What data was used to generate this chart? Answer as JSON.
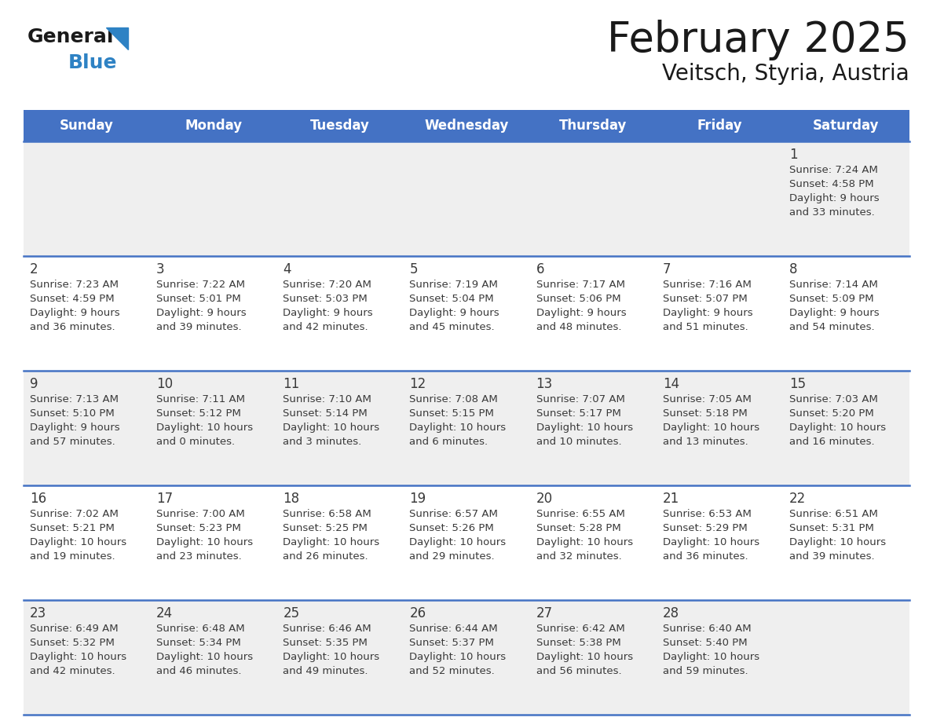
{
  "title": "February 2025",
  "subtitle": "Veitsch, Styria, Austria",
  "header_color": "#4472C4",
  "header_text_color": "#FFFFFF",
  "cell_bg_odd": "#EFEFEF",
  "cell_bg_even": "#FFFFFF",
  "divider_color": "#4472C4",
  "text_color": "#3a3a3a",
  "days_of_week": [
    "Sunday",
    "Monday",
    "Tuesday",
    "Wednesday",
    "Thursday",
    "Friday",
    "Saturday"
  ],
  "weeks": [
    [
      0,
      0,
      0,
      0,
      0,
      0,
      1
    ],
    [
      2,
      3,
      4,
      5,
      6,
      7,
      8
    ],
    [
      9,
      10,
      11,
      12,
      13,
      14,
      15
    ],
    [
      16,
      17,
      18,
      19,
      20,
      21,
      22
    ],
    [
      23,
      24,
      25,
      26,
      27,
      28,
      0
    ]
  ],
  "day_data": {
    "1": {
      "sunrise": "7:24 AM",
      "sunset": "4:58 PM",
      "daylight_line1": "Daylight: 9 hours",
      "daylight_line2": "and 33 minutes."
    },
    "2": {
      "sunrise": "7:23 AM",
      "sunset": "4:59 PM",
      "daylight_line1": "Daylight: 9 hours",
      "daylight_line2": "and 36 minutes."
    },
    "3": {
      "sunrise": "7:22 AM",
      "sunset": "5:01 PM",
      "daylight_line1": "Daylight: 9 hours",
      "daylight_line2": "and 39 minutes."
    },
    "4": {
      "sunrise": "7:20 AM",
      "sunset": "5:03 PM",
      "daylight_line1": "Daylight: 9 hours",
      "daylight_line2": "and 42 minutes."
    },
    "5": {
      "sunrise": "7:19 AM",
      "sunset": "5:04 PM",
      "daylight_line1": "Daylight: 9 hours",
      "daylight_line2": "and 45 minutes."
    },
    "6": {
      "sunrise": "7:17 AM",
      "sunset": "5:06 PM",
      "daylight_line1": "Daylight: 9 hours",
      "daylight_line2": "and 48 minutes."
    },
    "7": {
      "sunrise": "7:16 AM",
      "sunset": "5:07 PM",
      "daylight_line1": "Daylight: 9 hours",
      "daylight_line2": "and 51 minutes."
    },
    "8": {
      "sunrise": "7:14 AM",
      "sunset": "5:09 PM",
      "daylight_line1": "Daylight: 9 hours",
      "daylight_line2": "and 54 minutes."
    },
    "9": {
      "sunrise": "7:13 AM",
      "sunset": "5:10 PM",
      "daylight_line1": "Daylight: 9 hours",
      "daylight_line2": "and 57 minutes."
    },
    "10": {
      "sunrise": "7:11 AM",
      "sunset": "5:12 PM",
      "daylight_line1": "Daylight: 10 hours",
      "daylight_line2": "and 0 minutes."
    },
    "11": {
      "sunrise": "7:10 AM",
      "sunset": "5:14 PM",
      "daylight_line1": "Daylight: 10 hours",
      "daylight_line2": "and 3 minutes."
    },
    "12": {
      "sunrise": "7:08 AM",
      "sunset": "5:15 PM",
      "daylight_line1": "Daylight: 10 hours",
      "daylight_line2": "and 6 minutes."
    },
    "13": {
      "sunrise": "7:07 AM",
      "sunset": "5:17 PM",
      "daylight_line1": "Daylight: 10 hours",
      "daylight_line2": "and 10 minutes."
    },
    "14": {
      "sunrise": "7:05 AM",
      "sunset": "5:18 PM",
      "daylight_line1": "Daylight: 10 hours",
      "daylight_line2": "and 13 minutes."
    },
    "15": {
      "sunrise": "7:03 AM",
      "sunset": "5:20 PM",
      "daylight_line1": "Daylight: 10 hours",
      "daylight_line2": "and 16 minutes."
    },
    "16": {
      "sunrise": "7:02 AM",
      "sunset": "5:21 PM",
      "daylight_line1": "Daylight: 10 hours",
      "daylight_line2": "and 19 minutes."
    },
    "17": {
      "sunrise": "7:00 AM",
      "sunset": "5:23 PM",
      "daylight_line1": "Daylight: 10 hours",
      "daylight_line2": "and 23 minutes."
    },
    "18": {
      "sunrise": "6:58 AM",
      "sunset": "5:25 PM",
      "daylight_line1": "Daylight: 10 hours",
      "daylight_line2": "and 26 minutes."
    },
    "19": {
      "sunrise": "6:57 AM",
      "sunset": "5:26 PM",
      "daylight_line1": "Daylight: 10 hours",
      "daylight_line2": "and 29 minutes."
    },
    "20": {
      "sunrise": "6:55 AM",
      "sunset": "5:28 PM",
      "daylight_line1": "Daylight: 10 hours",
      "daylight_line2": "and 32 minutes."
    },
    "21": {
      "sunrise": "6:53 AM",
      "sunset": "5:29 PM",
      "daylight_line1": "Daylight: 10 hours",
      "daylight_line2": "and 36 minutes."
    },
    "22": {
      "sunrise": "6:51 AM",
      "sunset": "5:31 PM",
      "daylight_line1": "Daylight: 10 hours",
      "daylight_line2": "and 39 minutes."
    },
    "23": {
      "sunrise": "6:49 AM",
      "sunset": "5:32 PM",
      "daylight_line1": "Daylight: 10 hours",
      "daylight_line2": "and 42 minutes."
    },
    "24": {
      "sunrise": "6:48 AM",
      "sunset": "5:34 PM",
      "daylight_line1": "Daylight: 10 hours",
      "daylight_line2": "and 46 minutes."
    },
    "25": {
      "sunrise": "6:46 AM",
      "sunset": "5:35 PM",
      "daylight_line1": "Daylight: 10 hours",
      "daylight_line2": "and 49 minutes."
    },
    "26": {
      "sunrise": "6:44 AM",
      "sunset": "5:37 PM",
      "daylight_line1": "Daylight: 10 hours",
      "daylight_line2": "and 52 minutes."
    },
    "27": {
      "sunrise": "6:42 AM",
      "sunset": "5:38 PM",
      "daylight_line1": "Daylight: 10 hours",
      "daylight_line2": "and 56 minutes."
    },
    "28": {
      "sunrise": "6:40 AM",
      "sunset": "5:40 PM",
      "daylight_line1": "Daylight: 10 hours",
      "daylight_line2": "and 59 minutes."
    }
  }
}
